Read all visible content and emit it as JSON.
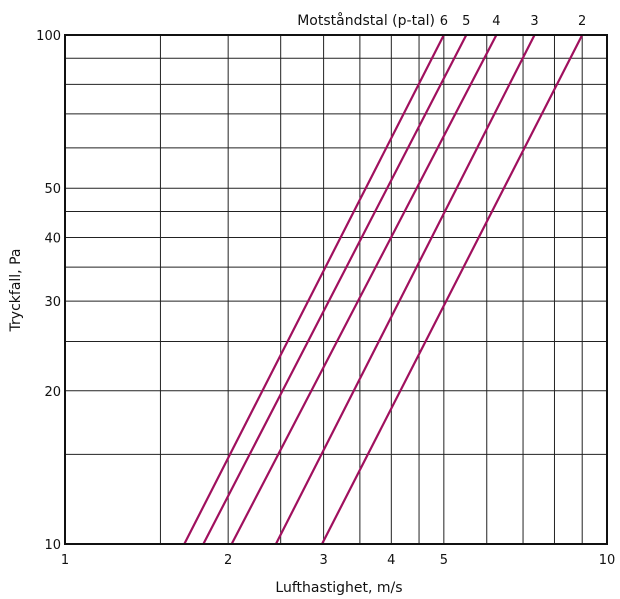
{
  "chart_data": {
    "type": "line",
    "title": "",
    "xlabel": "Lufthastighet, m/s",
    "ylabel": "Tryckfall, Pa",
    "legend_title": "Motståndstal (p-tal)",
    "xscale": "log",
    "yscale": "log",
    "xlim": [
      1,
      10
    ],
    "ylim": [
      10,
      100
    ],
    "x_ticks": [
      {
        "value": 1,
        "label": "1"
      },
      {
        "value": 2,
        "label": "2"
      },
      {
        "value": 3,
        "label": "3"
      },
      {
        "value": 4,
        "label": "4"
      },
      {
        "value": 5,
        "label": "5"
      },
      {
        "value": 10,
        "label": "10"
      }
    ],
    "y_ticks": [
      {
        "value": 10,
        "label": "10"
      },
      {
        "value": 20,
        "label": "20"
      },
      {
        "value": 30,
        "label": "30"
      },
      {
        "value": 40,
        "label": "40"
      },
      {
        "value": 50,
        "label": "50"
      },
      {
        "value": 100,
        "label": "100"
      }
    ],
    "x_grid": [
      1.5,
      2,
      2.5,
      3,
      3.5,
      4,
      4.5,
      5,
      6,
      7,
      8,
      9
    ],
    "y_grid": [
      15,
      20,
      25,
      30,
      35,
      40,
      45,
      50,
      60,
      70,
      80,
      90
    ],
    "grid": true,
    "line_color": "#a0105e",
    "series": [
      {
        "name": "6",
        "points": [
          [
            1.66,
            10
          ],
          [
            5.0,
            100
          ]
        ]
      },
      {
        "name": "5",
        "points": [
          [
            1.8,
            10
          ],
          [
            5.5,
            100
          ]
        ]
      },
      {
        "name": "4",
        "points": [
          [
            2.03,
            10
          ],
          [
            6.25,
            100
          ]
        ]
      },
      {
        "name": "3",
        "points": [
          [
            2.45,
            10
          ],
          [
            7.35,
            100
          ]
        ]
      },
      {
        "name": "2",
        "points": [
          [
            2.98,
            10
          ],
          [
            9.0,
            100
          ]
        ]
      }
    ]
  }
}
